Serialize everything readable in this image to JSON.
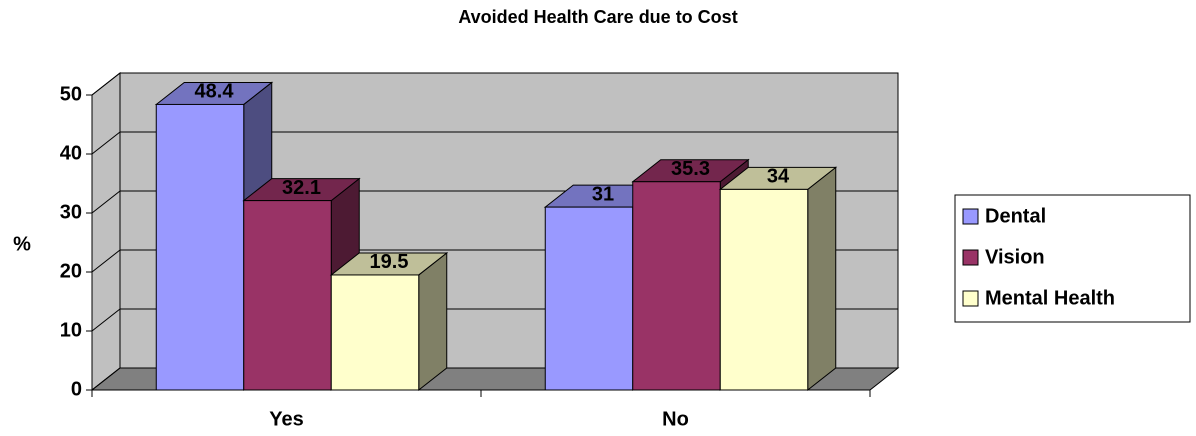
{
  "chart_data": {
    "type": "bar3d",
    "title": "Avoided Health Care due to Cost",
    "y_label": "%",
    "categories": [
      "Yes",
      "No"
    ],
    "series": [
      {
        "name": "Dental",
        "color": "#9999ff",
        "values": [
          48.4,
          31
        ]
      },
      {
        "name": "Vision",
        "color": "#993366",
        "values": [
          32.1,
          35.3
        ]
      },
      {
        "name": "Mental Health",
        "color": "#ffffcc",
        "values": [
          19.5,
          34
        ]
      }
    ],
    "ylim": [
      0,
      50
    ],
    "yticks": [
      0,
      10,
      20,
      30,
      40,
      50
    ],
    "grid": true,
    "legend": "right"
  }
}
